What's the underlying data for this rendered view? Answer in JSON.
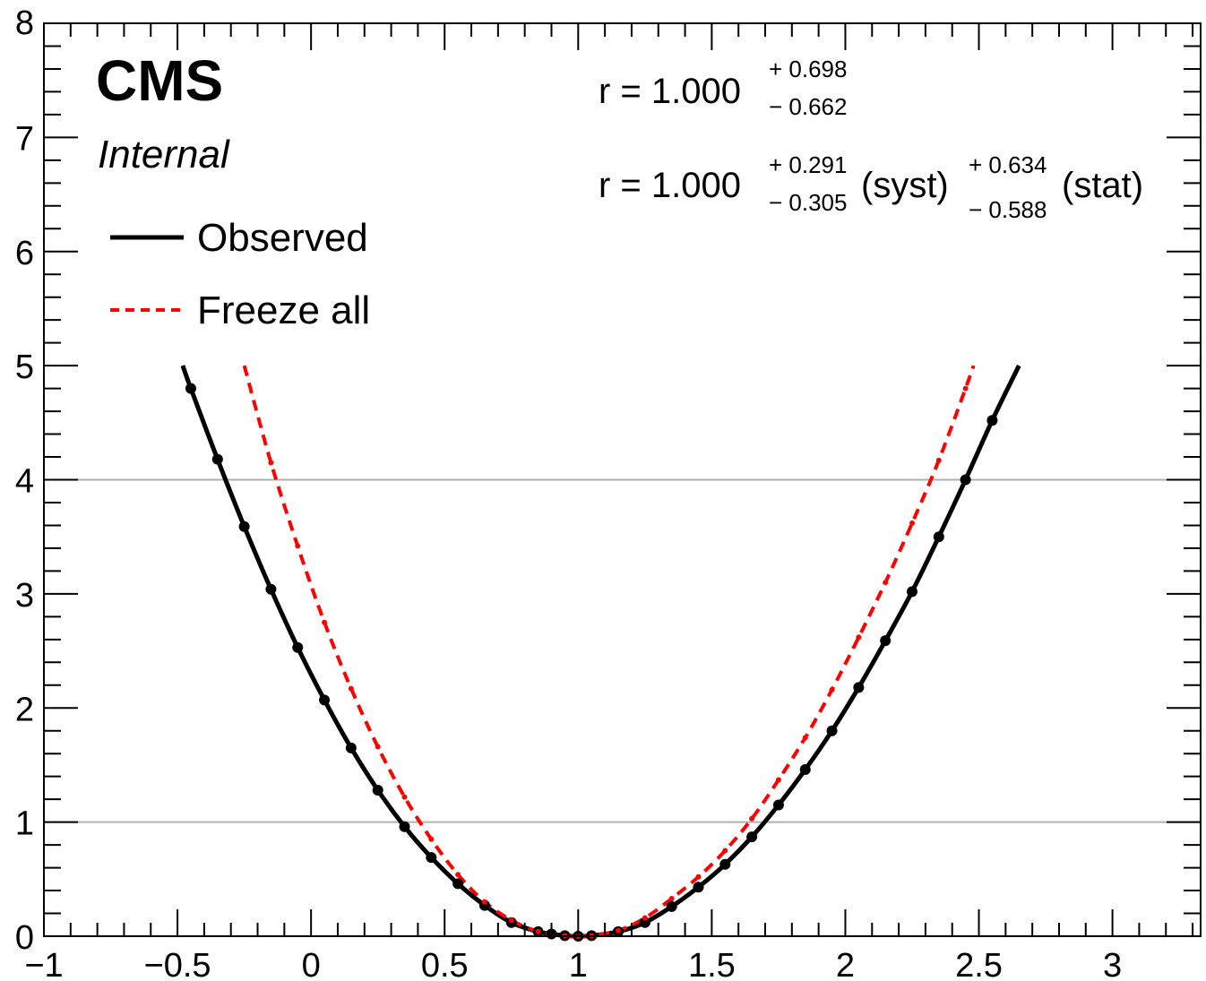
{
  "chart_data": {
    "type": "line",
    "title": "",
    "xlabel": "",
    "ylabel": "",
    "xlim": [
      -1,
      3.33
    ],
    "ylim": [
      0,
      8
    ],
    "x_ticks": [
      -1,
      -0.5,
      0,
      0.5,
      1,
      1.5,
      2,
      2.5,
      3
    ],
    "x_tick_labels": [
      "−1",
      "−0.5",
      "0",
      "0.5",
      "1",
      "1.5",
      "2",
      "2.5",
      "3"
    ],
    "y_ticks": [
      0,
      1,
      2,
      3,
      4,
      5,
      6,
      7,
      8
    ],
    "y_tick_labels": [
      "0",
      "1",
      "2",
      "3",
      "4",
      "5",
      "6",
      "7",
      "8"
    ],
    "reference_lines": [
      1,
      4
    ],
    "grid": false,
    "legend_position": "top-left",
    "labels": {
      "experiment": "CMS",
      "status": "Internal"
    },
    "results": {
      "total": {
        "prefix": "r = 1.000",
        "up": "+ 0.698",
        "down": "− 0.662"
      },
      "breakdown": {
        "prefix": "r = 1.000",
        "syst_up": "+ 0.291",
        "syst_down": "− 0.305",
        "syst_label": "(syst)",
        "stat_up": "+ 0.634",
        "stat_down": "− 0.588",
        "stat_label": "(stat)"
      }
    },
    "series": [
      {
        "name": "Observed",
        "color": "#000000",
        "style": "solid",
        "x": [
          -0.45,
          -0.35,
          -0.25,
          -0.15,
          -0.05,
          0.05,
          0.15,
          0.25,
          0.35,
          0.45,
          0.55,
          0.65,
          0.75,
          0.85,
          0.9,
          0.95,
          1.0,
          1.05,
          1.15,
          1.25,
          1.35,
          1.45,
          1.55,
          1.65,
          1.75,
          1.85,
          1.95,
          2.05,
          2.15,
          2.25,
          2.35,
          2.45,
          2.55
        ],
        "y": [
          4.8,
          4.18,
          3.59,
          3.04,
          2.53,
          2.07,
          1.65,
          1.28,
          0.96,
          0.69,
          0.46,
          0.27,
          0.12,
          0.04,
          0.02,
          0.005,
          0.0,
          0.005,
          0.04,
          0.12,
          0.26,
          0.43,
          0.63,
          0.87,
          1.15,
          1.46,
          1.8,
          2.18,
          2.59,
          3.02,
          3.5,
          4.0,
          4.52
        ]
      },
      {
        "name": "Freeze all",
        "color": "#ff0000",
        "style": "dashed",
        "x": [
          -0.25,
          -0.15,
          -0.05,
          0.05,
          0.15,
          0.25,
          0.35,
          0.45,
          0.55,
          0.65,
          0.75,
          0.85,
          0.95,
          1.0,
          1.05,
          1.15,
          1.25,
          1.35,
          1.45,
          1.55,
          1.65,
          1.75,
          1.85,
          1.95,
          2.05,
          2.15,
          2.25,
          2.35,
          2.45,
          2.48
        ],
        "y": [
          5.0,
          4.15,
          3.42,
          2.75,
          2.17,
          1.66,
          1.22,
          0.85,
          0.54,
          0.3,
          0.14,
          0.04,
          0.005,
          0.0,
          0.005,
          0.05,
          0.16,
          0.33,
          0.52,
          0.75,
          1.03,
          1.37,
          1.74,
          2.16,
          2.62,
          3.1,
          3.62,
          4.17,
          4.8,
          5.0
        ]
      }
    ]
  }
}
